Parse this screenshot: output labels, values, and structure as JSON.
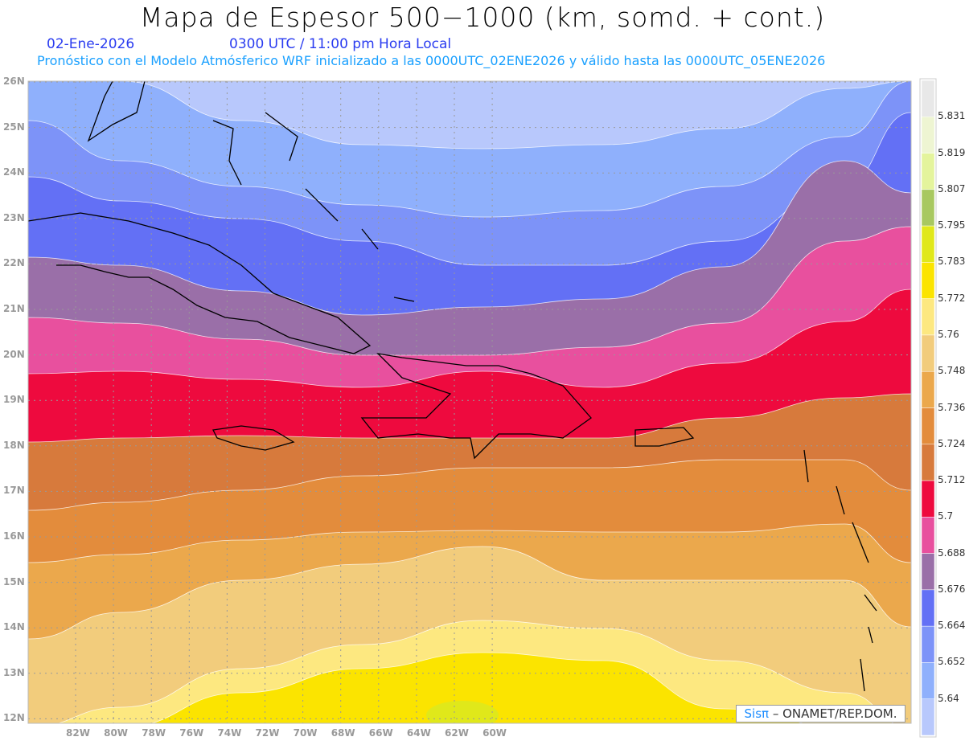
{
  "header": {
    "title": "Mapa de Espesor 500−1000 (km, somd. + cont.)",
    "date": "02-Ene-2026",
    "time": "0300 UTC / 11:00 pm Hora Local",
    "forecast_note": "Pronóstico con el Modelo Atmósferico WRF inicializado a las 0000UTC_02ENE2026 y válido hasta las  0000UTC_05ENE2026"
  },
  "axes": {
    "lon_labels": [
      "82W",
      "80W",
      "78W",
      "76W",
      "74W",
      "72W",
      "70W",
      "68W",
      "66W",
      "64W",
      "62W",
      "60W"
    ],
    "lat_labels": [
      "26N",
      "25N",
      "24N",
      "23N",
      "22N",
      "21N",
      "20N",
      "19N",
      "18N",
      "17N",
      "16N",
      "15N",
      "14N",
      "13N",
      "12N"
    ]
  },
  "legend": {
    "labels": [
      "5.831",
      "5.819",
      "5.807",
      "5.795",
      "5.783",
      "5.772",
      "5.76",
      "5.748",
      "5.736",
      "5.724",
      "5.712",
      "5.7",
      "5.688",
      "5.676",
      "5.664",
      "5.652",
      "5.64"
    ],
    "colors_top_to_bottom": [
      "#e8e8e8",
      "#eef5d2",
      "#e4f49c",
      "#a8c860",
      "#e0e81a",
      "#fbe400",
      "#fde880",
      "#f2cc7c",
      "#eba84c",
      "#e38c3c",
      "#d77a3c",
      "#ee0a3e",
      "#e8509e",
      "#9a6fa8",
      "#6370f5",
      "#7d93f8",
      "#8fb0fc",
      "#b8c8fc"
    ]
  },
  "credit": {
    "brand": "Sisπ",
    "text": " –  ONAMET/REP.DOM."
  }
}
